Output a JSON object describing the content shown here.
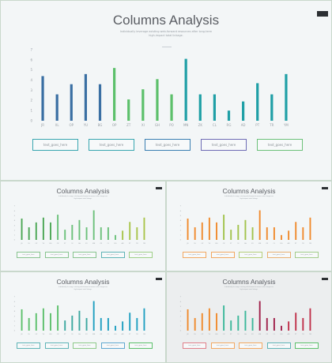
{
  "slides": {
    "main": {
      "title": "Columns Analysis",
      "subtitle_line1": "Individually leverage existing web-forward resources after long-term",
      "subtitle_line2": "high-impact total linkage.",
      "boxes": [
        "text_goes_here",
        "text_goes_here",
        "text_goes_here",
        "text_goes_here",
        "text_goes_here"
      ]
    },
    "small": {
      "title": "Columns Analysis",
      "subtitle": "Individually leverage existing web-forward resources after long-term",
      "subtitle2": "high-impact total linkage."
    }
  },
  "chart_data": {
    "type": "bar",
    "categories": [
      "JR",
      "XL",
      "OP",
      "YU",
      "BG",
      "OP",
      "ZT",
      "XI",
      "GH",
      "PO",
      "MN",
      "ZK",
      "CL",
      "RG",
      "AD",
      "PT",
      "TR",
      "YM"
    ],
    "values": [
      4.4,
      2.6,
      3.6,
      4.6,
      3.6,
      5.2,
      2.1,
      3.1,
      4.1,
      2.6,
      6.1,
      2.6,
      2.6,
      1.0,
      1.9,
      3.7,
      2.6,
      4.6
    ],
    "ylim": [
      0,
      7
    ],
    "yticks": [
      0,
      1,
      2,
      3,
      4,
      5,
      6,
      7
    ],
    "grid": false
  },
  "palettes": {
    "main": [
      "#3a6fa3",
      "#3a6fa3",
      "#3a6fa3",
      "#3a6fa3",
      "#3a6fa3",
      "#5cc06b",
      "#5cc06b",
      "#5cc06b",
      "#5cc06b",
      "#5cc06b",
      "#1f9fa6",
      "#1f9fa6",
      "#1f9fa6",
      "#1f9fa6",
      "#1f9fa6",
      "#1f9fa6",
      "#1f9fa6",
      "#1f9fa6"
    ],
    "main_boxes": [
      "#38a6b0",
      "#38a6b0",
      "#3a7fb2",
      "#6e6bb5",
      "#6cc17a"
    ],
    "s1": [
      "#4aa653",
      "#4aa653",
      "#4aa653",
      "#4aa653",
      "#4aa653",
      "#6cc17a",
      "#6cc17a",
      "#6cc17a",
      "#6cc17a",
      "#6cc17a",
      "#6cc17a",
      "#6cc17a",
      "#6cc17a",
      "#6cc17a",
      "#a8c44a",
      "#a8c44a",
      "#a8c44a",
      "#a8c44a"
    ],
    "s1_boxes": [
      "#88c48f",
      "#88c48f",
      "#88c48f",
      "#5fb4b6",
      "#9ecf87"
    ],
    "s2": [
      "#f08a2c",
      "#f08a2c",
      "#f08a2c",
      "#f08a2c",
      "#f08a2c",
      "#a2c34c",
      "#a2c34c",
      "#a2c34c",
      "#a2c34c",
      "#a2c34c",
      "#f08a2c",
      "#f08a2c",
      "#f08a2c",
      "#f08a2c",
      "#f08a2c",
      "#f08a2c",
      "#f08a2c",
      "#f08a2c"
    ],
    "s2_boxes": [
      "#f2a862",
      "#f2a862",
      "#b5cf7a",
      "#e8b070",
      "#a3cc8a"
    ],
    "s3": [
      "#5cc06b",
      "#5cc06b",
      "#5cc06b",
      "#5cc06b",
      "#5cc06b",
      "#5cc06b",
      "#3ca8a0",
      "#3ca8a0",
      "#3ca8a0",
      "#3ca8a0",
      "#1f9fc0",
      "#1f9fc0",
      "#1f9fc0",
      "#1f9fc0",
      "#1f9fc0",
      "#1f9fc0",
      "#1f9fc0",
      "#1f9fc0"
    ],
    "s3_boxes": [
      "#5fb4b6",
      "#5fb4b6",
      "#8ec98a",
      "#5fa8d0",
      "#5cc06b"
    ],
    "s4": [
      "#f08a2c",
      "#f08a2c",
      "#f08a2c",
      "#f08a2c",
      "#f08a2c",
      "#3cb89a",
      "#3cb89a",
      "#3cb89a",
      "#3cb89a",
      "#3cb89a",
      "#a0204a",
      "#a0204a",
      "#a0204a",
      "#a0204a",
      "#c0304a",
      "#c0304a",
      "#c0304a",
      "#c0304a"
    ],
    "s4_boxes": [
      "#e0808a",
      "#f2a862",
      "#f2a862",
      "#5fb4b6",
      "#5cc06b"
    ]
  }
}
